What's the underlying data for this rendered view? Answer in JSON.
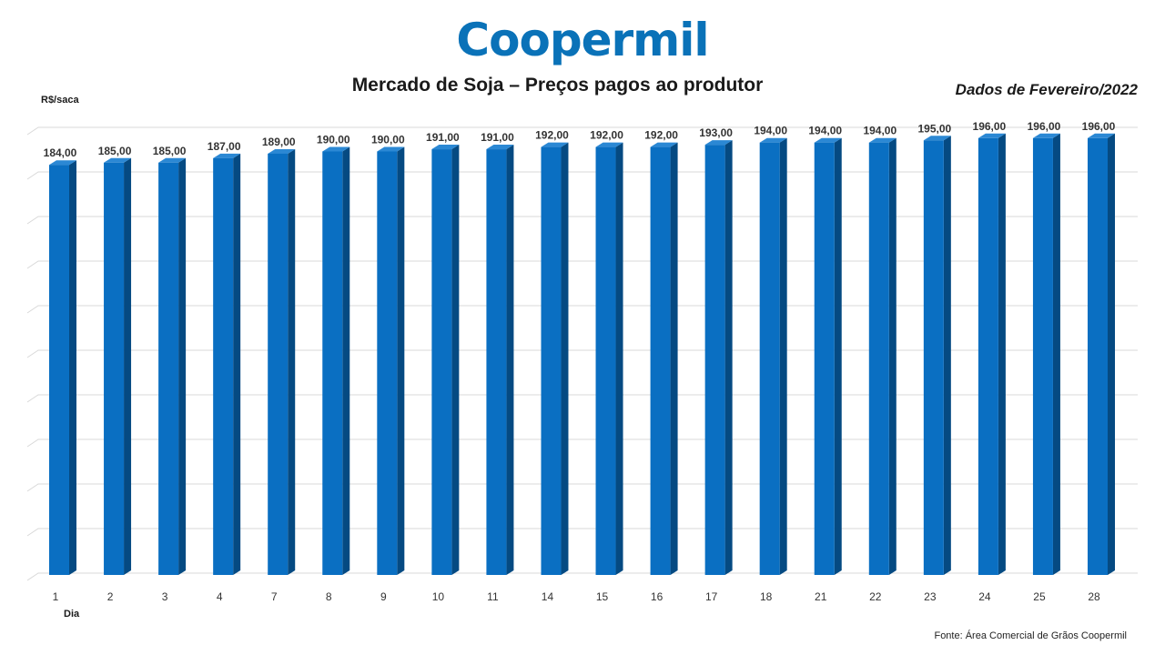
{
  "brand": {
    "name": "Coopermil",
    "color": "#0a72b8"
  },
  "colors": {
    "bar_front": "#0a6fc2",
    "bar_side": "#054a82",
    "bar_top": "#2b88d4",
    "grid": "#d9d9d9"
  },
  "chart_data": {
    "type": "bar",
    "title": "Mercado de Soja – Preços pagos ao produtor",
    "subtitle": "Dados de Fevereiro/2022",
    "ylabel": "R$/saca",
    "xlabel": "Dia",
    "source": "Fonte:  Área Comercial de Grãos Coopermil",
    "categories": [
      "1",
      "2",
      "3",
      "4",
      "7",
      "8",
      "9",
      "10",
      "11",
      "14",
      "15",
      "16",
      "17",
      "18",
      "21",
      "22",
      "23",
      "24",
      "25",
      "28"
    ],
    "values": [
      184,
      185,
      185,
      187,
      189,
      190,
      190,
      191,
      191,
      192,
      192,
      192,
      193,
      194,
      194,
      194,
      195,
      196,
      196,
      196
    ],
    "value_labels": [
      "184,00",
      "185,00",
      "185,00",
      "187,00",
      "189,00",
      "190,00",
      "190,00",
      "191,00",
      "191,00",
      "192,00",
      "192,00",
      "192,00",
      "193,00",
      "194,00",
      "194,00",
      "194,00",
      "195,00",
      "196,00",
      "196,00",
      "196,00"
    ],
    "ylim": [
      0,
      200
    ],
    "grid": true,
    "legend": "none",
    "style": "3d-column"
  }
}
